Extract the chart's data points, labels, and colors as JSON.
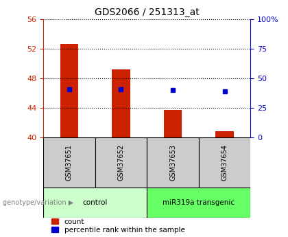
{
  "title": "GDS2066 / 251313_at",
  "samples": [
    "GSM37651",
    "GSM37652",
    "GSM37653",
    "GSM37654"
  ],
  "bar_tops": [
    52.6,
    49.2,
    43.7,
    40.8
  ],
  "bar_base": 40,
  "bar_color": "#cc2200",
  "blue_y": [
    46.5,
    46.5,
    46.4,
    46.2
  ],
  "blue_color": "#0000cc",
  "left_ylim": [
    40,
    56
  ],
  "left_yticks": [
    40,
    44,
    48,
    52,
    56
  ],
  "right_yticks": [
    0,
    25,
    50,
    75,
    100
  ],
  "right_ytick_labels": [
    "0",
    "25",
    "50",
    "75",
    "100%"
  ],
  "groups": [
    {
      "label": "control",
      "samples": [
        0,
        1
      ],
      "color": "#ccffcc"
    },
    {
      "label": "miR319a transgenic",
      "samples": [
        2,
        3
      ],
      "color": "#66ff66"
    }
  ],
  "genotype_label": "genotype/variation",
  "legend_count_label": "count",
  "legend_pct_label": "percentile rank within the sample",
  "title_fontsize": 10,
  "tick_fontsize": 8,
  "label_fontsize": 8,
  "bar_width": 0.35,
  "bg_color": "#ffffff",
  "sample_cell_color": "#cccccc"
}
